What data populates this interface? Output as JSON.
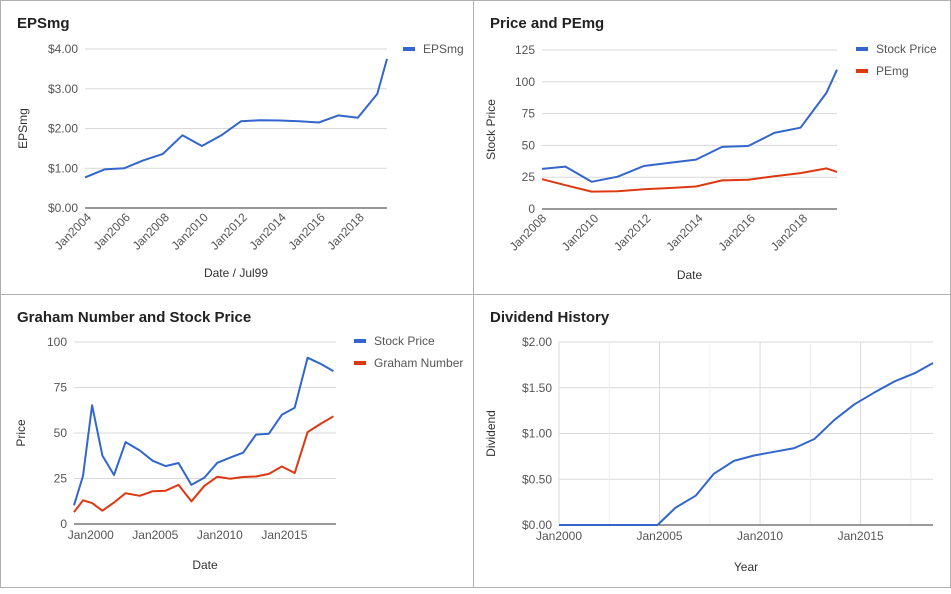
{
  "colors": {
    "blue": "#3366cc",
    "red": "#dc3912",
    "grid": "#d9d9d9",
    "axis": "#333333",
    "label": "#555555"
  },
  "chart_data": [
    {
      "id": "epsmg",
      "type": "line",
      "title": "EPSmg",
      "xlabel": "Date / Jul99",
      "ylabel": "EPSmg",
      "xlim": [
        2003.9,
        2019.4
      ],
      "ylim": [
        0,
        4
      ],
      "yticks": [
        0,
        1,
        2,
        3,
        4
      ],
      "yticklabels": [
        "$0.00",
        "$1.00",
        "$2.00",
        "$3.00",
        "$4.00"
      ],
      "xticks": [
        2004,
        2006,
        2008,
        2010,
        2012,
        2014,
        2016,
        2018
      ],
      "xticklabels": [
        "Jan2004",
        "Jan2006",
        "Jan2008",
        "Jan2010",
        "Jan2012",
        "Jan2014",
        "Jan2016",
        "Jan2018"
      ],
      "rotate_x": true,
      "legend": "right",
      "series": [
        {
          "name": "EPSmg",
          "color": "#3366cc",
          "x": [
            2003.9,
            2004.9,
            2005.9,
            2006.9,
            2007.9,
            2008.9,
            2009.9,
            2010.9,
            2011.9,
            2012.9,
            2013.9,
            2014.9,
            2015.9,
            2016.9,
            2017.9,
            2018.9,
            2019.4
          ],
          "y": [
            0.77,
            0.97,
            1.0,
            1.2,
            1.36,
            1.83,
            1.56,
            1.83,
            2.18,
            2.21,
            2.2,
            2.18,
            2.15,
            2.33,
            2.27,
            2.87,
            3.75
          ]
        }
      ]
    },
    {
      "id": "price_pe",
      "type": "line",
      "title": "Price and PEmg",
      "xlabel": "Date",
      "ylabel": "Stock Price",
      "xlim": [
        2008.0,
        2019.3
      ],
      "ylim": [
        0,
        125
      ],
      "yticks": [
        0,
        25,
        50,
        75,
        100,
        125
      ],
      "yticklabels": [
        "0",
        "25",
        "50",
        "75",
        "100",
        "125"
      ],
      "xticks": [
        2008,
        2010,
        2012,
        2014,
        2016,
        2018
      ],
      "xticklabels": [
        "Jan2008",
        "Jan2010",
        "Jan2012",
        "Jan2014",
        "Jan2016",
        "Jan2018"
      ],
      "rotate_x": true,
      "legend": "right",
      "series": [
        {
          "name": "Stock Price",
          "color": "#3366cc",
          "x": [
            2008.0,
            2008.9,
            2009.9,
            2010.9,
            2011.9,
            2012.9,
            2013.9,
            2014.9,
            2015.9,
            2016.9,
            2017.9,
            2018.9,
            2019.3
          ],
          "y": [
            31.5,
            33.3,
            21.4,
            25.4,
            33.8,
            36.4,
            38.8,
            48.8,
            49.5,
            59.8,
            63.9,
            91.5,
            109.5
          ]
        },
        {
          "name": "PEmg",
          "color": "#dc3912",
          "x": [
            2008.0,
            2008.9,
            2009.9,
            2010.9,
            2011.9,
            2012.9,
            2013.9,
            2014.9,
            2015.9,
            2016.9,
            2017.9,
            2018.9,
            2019.3
          ],
          "y": [
            23.4,
            18.7,
            13.7,
            14.0,
            15.5,
            16.5,
            17.7,
            22.5,
            23.0,
            25.7,
            28.2,
            31.9,
            29.2
          ]
        }
      ]
    },
    {
      "id": "graham",
      "type": "line",
      "title": "Graham Number and Stock Price",
      "xlabel": "Date",
      "ylabel": "Price",
      "xlim": [
        1998.7,
        2019.0
      ],
      "ylim": [
        0,
        100
      ],
      "yticks": [
        0,
        25,
        50,
        75,
        100
      ],
      "yticklabels": [
        "0",
        "25",
        "50",
        "75",
        "100"
      ],
      "xticks": [
        2000,
        2005,
        2010,
        2015
      ],
      "xticklabels": [
        "Jan2000",
        "Jan2005",
        "Jan2010",
        "Jan2015"
      ],
      "rotate_x": false,
      "legend": "right",
      "series": [
        {
          "name": "Stock Price",
          "color": "#3366cc",
          "x": [
            1998.7,
            1999.4,
            2000.1,
            2000.9,
            2001.8,
            2002.7,
            2003.8,
            2004.8,
            2005.8,
            2006.8,
            2007.8,
            2008.8,
            2009.8,
            2010.8,
            2011.8,
            2012.8,
            2013.8,
            2014.8,
            2015.8,
            2016.8,
            2017.8,
            2018.8
          ],
          "y": [
            10.3,
            26.4,
            65.2,
            37.6,
            26.9,
            45.0,
            40.4,
            34.7,
            31.8,
            33.5,
            21.5,
            25.5,
            33.6,
            36.5,
            39.2,
            49.1,
            49.6,
            60.0,
            63.9,
            91.4,
            88.0,
            84.0
          ]
        },
        {
          "name": "Graham Number",
          "color": "#dc3912",
          "x": [
            1998.7,
            1999.4,
            2000.1,
            2000.9,
            2001.8,
            2002.7,
            2003.8,
            2004.8,
            2005.8,
            2006.8,
            2007.8,
            2008.8,
            2009.8,
            2010.8,
            2011.8,
            2012.8,
            2013.8,
            2014.8,
            2015.8,
            2016.8,
            2017.8,
            2018.8
          ],
          "y": [
            6.5,
            13.0,
            11.5,
            7.3,
            11.8,
            16.9,
            15.5,
            18.0,
            18.3,
            21.5,
            12.5,
            21.0,
            26.0,
            24.9,
            25.8,
            26.1,
            27.5,
            31.6,
            28.0,
            50.5,
            55.0,
            59.2
          ]
        }
      ]
    },
    {
      "id": "dividend",
      "type": "line",
      "title": "Dividend History",
      "xlabel": "Year",
      "ylabel": "Dividend",
      "xlim": [
        2000,
        2018.6
      ],
      "ylim": [
        0,
        2
      ],
      "yticks": [
        0,
        0.5,
        1,
        1.5,
        2
      ],
      "yticklabels": [
        "$0.00",
        "$0.50",
        "$1.00",
        "$1.50",
        "$2.00"
      ],
      "xticks": [
        2000,
        2005,
        2010,
        2015
      ],
      "xticklabels": [
        "Jan2000",
        "Jan2005",
        "Jan2010",
        "Jan2015"
      ],
      "rotate_x": false,
      "vgrid": true,
      "legend": "none",
      "series": [
        {
          "name": "",
          "color": "#3366cc",
          "x": [
            2000,
            2004.9,
            2005.8,
            2006.8,
            2007.7,
            2008.7,
            2009.7,
            2010.7,
            2011.7,
            2012.7,
            2013.7,
            2014.7,
            2015.7,
            2016.7,
            2017.7,
            2018.6
          ],
          "y": [
            0,
            0,
            0.19,
            0.32,
            0.56,
            0.7,
            0.76,
            0.8,
            0.84,
            0.94,
            1.15,
            1.32,
            1.45,
            1.57,
            1.66,
            1.77
          ]
        }
      ]
    }
  ]
}
